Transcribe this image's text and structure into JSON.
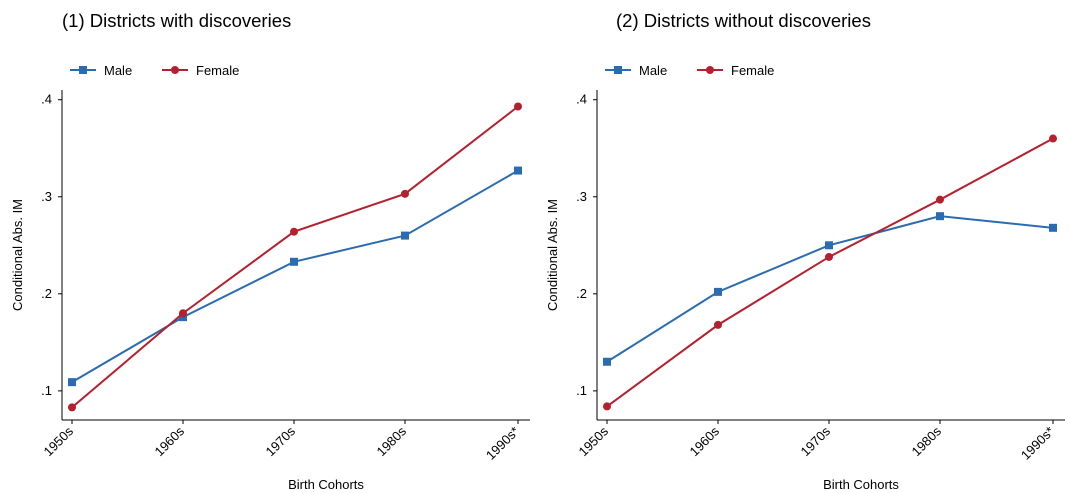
{
  "chart_data": [
    {
      "type": "line",
      "title": "(1) Districts with discoveries",
      "xlabel": "Birth Cohorts",
      "ylabel": "Conditional Abs. IM",
      "categories": [
        "1950s",
        "1960s",
        "1970s",
        "1980s",
        "1990s*"
      ],
      "yticks": [
        ".1",
        ".2",
        ".3",
        ".4"
      ],
      "ylim": [
        0.07,
        0.41
      ],
      "legend_position": "top-left",
      "grid": false,
      "series": [
        {
          "name": "Male",
          "color": "#2b6cb0",
          "marker": "square",
          "values": [
            0.109,
            0.176,
            0.233,
            0.26,
            0.327
          ]
        },
        {
          "name": "Female",
          "color": "#b5202e",
          "marker": "circle",
          "values": [
            0.083,
            0.18,
            0.264,
            0.303,
            0.393
          ]
        }
      ]
    },
    {
      "type": "line",
      "title": "(2) Districts without discoveries",
      "xlabel": "Birth Cohorts",
      "ylabel": "Conditional Abs. IM",
      "categories": [
        "1950s",
        "1960s",
        "1970s",
        "1980s",
        "1990s*"
      ],
      "yticks": [
        ".1",
        ".2",
        ".3",
        ".4"
      ],
      "ylim": [
        0.07,
        0.41
      ],
      "legend_position": "top-left",
      "grid": false,
      "series": [
        {
          "name": "Male",
          "color": "#2b6cb0",
          "marker": "square",
          "values": [
            0.13,
            0.202,
            0.25,
            0.28,
            0.268
          ]
        },
        {
          "name": "Female",
          "color": "#b5202e",
          "marker": "circle",
          "values": [
            0.084,
            0.168,
            0.238,
            0.297,
            0.36
          ]
        }
      ]
    }
  ]
}
